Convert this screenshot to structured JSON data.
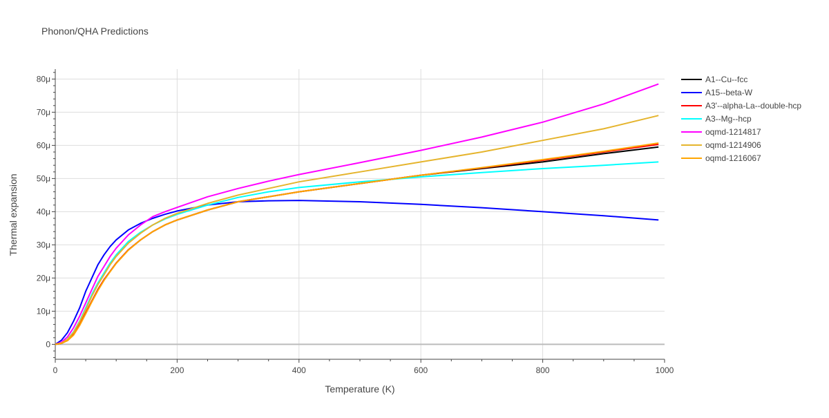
{
  "chart_data": {
    "type": "line",
    "title": "Phonon/QHA Predictions",
    "xlabel": "Temperature (K)",
    "ylabel": "Thermal expansion",
    "xlim": [
      0,
      1000
    ],
    "ylim": [
      -4.5,
      83
    ],
    "x_ticks": [
      0,
      200,
      400,
      600,
      800,
      1000
    ],
    "x_tick_labels": [
      "0",
      "200",
      "400",
      "600",
      "800",
      "1000"
    ],
    "y_ticks": [
      0,
      10,
      20,
      30,
      40,
      50,
      60,
      70,
      80
    ],
    "y_tick_labels": [
      "0",
      "10μ",
      "20μ",
      "30μ",
      "40μ",
      "50μ",
      "60μ",
      "70μ",
      "80μ"
    ],
    "grid": true,
    "legend_position": "top-right",
    "x": [
      0,
      10,
      20,
      30,
      40,
      50,
      60,
      70,
      80,
      90,
      100,
      120,
      140,
      160,
      180,
      200,
      250,
      300,
      350,
      400,
      500,
      600,
      700,
      800,
      900,
      990
    ],
    "series": [
      {
        "name": "A1--Cu--fcc",
        "color": "#000000",
        "values": [
          0,
          0.3,
          1.2,
          3,
          6,
          9.5,
          13,
          16.5,
          19.5,
          22,
          24.5,
          28.5,
          31.5,
          34,
          36,
          37.5,
          40.5,
          43,
          44.5,
          46,
          48.5,
          51,
          53,
          55,
          57.5,
          59.5
        ]
      },
      {
        "name": "A15--beta-W",
        "color": "#0000ff",
        "values": [
          0,
          1.2,
          3.5,
          7,
          11,
          16,
          20,
          24,
          27,
          29.5,
          31.5,
          34.5,
          36.5,
          38,
          39.2,
          40.2,
          42,
          43,
          43.3,
          43.4,
          43,
          42.2,
          41.2,
          40,
          38.8,
          37.5
        ]
      },
      {
        "name": "A3'--alpha-La--double-hcp",
        "color": "#ff0000",
        "values": [
          0,
          0.3,
          1.2,
          3,
          6,
          9.5,
          13,
          16.5,
          19.5,
          22,
          24.5,
          28.5,
          31.5,
          34,
          36,
          37.5,
          40.5,
          43,
          44.5,
          46,
          48.5,
          51,
          53.2,
          55.5,
          58,
          60.3
        ]
      },
      {
        "name": "A3--Mg--hcp",
        "color": "#00ffff",
        "values": [
          0,
          0.4,
          1.5,
          3.8,
          7,
          11,
          15,
          18.5,
          21.5,
          24.5,
          27,
          31,
          33.8,
          36,
          37.8,
          39.2,
          42,
          44.3,
          46,
          47.3,
          49,
          50.5,
          51.8,
          53,
          54,
          55
        ]
      },
      {
        "name": "oqmd-1214817",
        "color": "#ff00ff",
        "values": [
          0,
          0.6,
          2.2,
          5,
          8.5,
          12.5,
          16.5,
          20.5,
          23.5,
          26.5,
          29,
          33,
          36,
          38.5,
          40,
          41.3,
          44.5,
          47,
          49.2,
          51.2,
          54.8,
          58.5,
          62.5,
          67,
          72.5,
          78.5
        ]
      },
      {
        "name": "oqmd-1214906",
        "color": "#e5b42c",
        "values": [
          0,
          0.4,
          1.5,
          3.6,
          6.8,
          10.5,
          14.5,
          18,
          21,
          24,
          26.5,
          30.5,
          33.5,
          36,
          38,
          39.5,
          42.5,
          45,
          47,
          49,
          52,
          55,
          58,
          61.5,
          65,
          69
        ]
      },
      {
        "name": "oqmd-1216067",
        "color": "#ffa500",
        "values": [
          0,
          0.3,
          1.1,
          2.8,
          5.7,
          9.2,
          12.8,
          16.2,
          19.3,
          21.9,
          24.4,
          28.4,
          31.5,
          34,
          36,
          37.5,
          40.5,
          43,
          44.5,
          46,
          48.5,
          51,
          53.3,
          55.7,
          58.2,
          60.7
        ]
      }
    ]
  }
}
